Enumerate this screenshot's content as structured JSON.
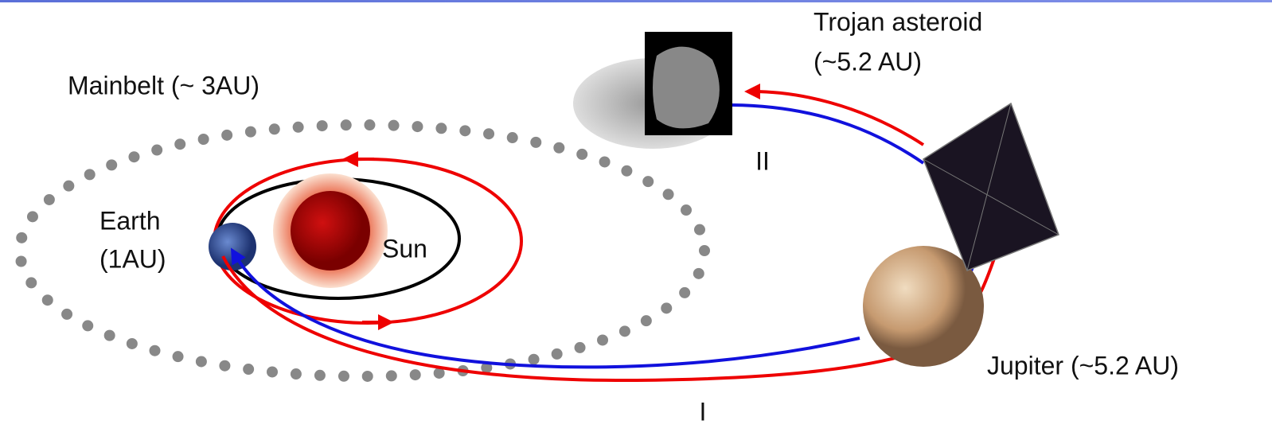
{
  "nodes": [
    {
      "lines": [
        "Trojan asteroid",
        "(~5.2 AU)"
      ]
    },
    {
      "lines": [
        "Mainbelt (~ 3AU)"
      ]
    },
    {
      "lines": [
        "Earth",
        "(1AU)"
      ]
    },
    {
      "lines": [
        "Sun"
      ]
    },
    {
      "lines": [
        "Jupiter (~5.2 AU)"
      ]
    }
  ],
  "paths": [
    {
      "label": "II"
    },
    {
      "label": "I"
    }
  ]
}
